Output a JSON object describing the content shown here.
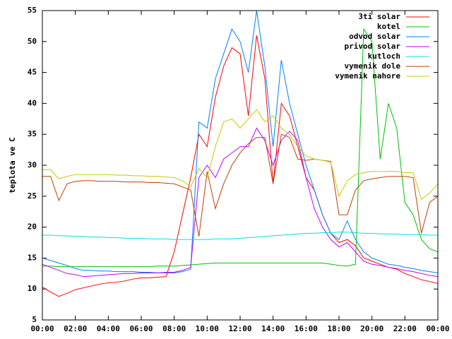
{
  "chart_data": {
    "type": "line",
    "ylabel": "teplota ve C",
    "x": [
      0,
      0.5,
      1,
      1.5,
      2,
      2.5,
      3,
      3.5,
      4,
      4.5,
      5,
      5.5,
      6,
      6.5,
      7,
      7.5,
      8,
      8.5,
      9,
      9.5,
      10,
      10.5,
      11,
      11.5,
      12,
      12.5,
      13,
      13.5,
      14,
      14.5,
      15,
      15.5,
      16,
      16.5,
      17,
      17.5,
      18,
      18.5,
      19,
      19.5,
      20,
      20.5,
      21,
      21.5,
      22,
      22.5,
      23,
      23.5,
      24
    ],
    "xlim": [
      0,
      24
    ],
    "xticks": [
      {
        "value": 0,
        "label": "00:00"
      },
      {
        "value": 2,
        "label": "02:00"
      },
      {
        "value": 4,
        "label": "04:00"
      },
      {
        "value": 6,
        "label": "06:00"
      },
      {
        "value": 8,
        "label": "08:00"
      },
      {
        "value": 10,
        "label": "10:00"
      },
      {
        "value": 12,
        "label": "12:00"
      },
      {
        "value": 14,
        "label": "14:00"
      },
      {
        "value": 16,
        "label": "16:00"
      },
      {
        "value": 18,
        "label": "18:00"
      },
      {
        "value": 20,
        "label": "20:00"
      },
      {
        "value": 22,
        "label": "22:00"
      },
      {
        "value": 24,
        "label": "00:00"
      }
    ],
    "ylim": [
      5,
      55
    ],
    "yticks": [
      5,
      10,
      15,
      20,
      25,
      30,
      35,
      40,
      45,
      50,
      55
    ],
    "legend": "top-right",
    "series": [
      {
        "name": "3ti solar",
        "color": "#ff0000",
        "values": [
          10.3,
          9.5,
          8.8,
          9.3,
          9.9,
          10.2,
          10.5,
          10.8,
          11,
          11.1,
          11.3,
          11.6,
          11.8,
          11.8,
          11.9,
          12,
          16,
          22,
          28,
          35,
          33,
          41,
          46,
          49,
          48,
          38,
          51,
          44,
          27,
          40,
          38,
          33,
          28,
          26,
          22,
          19,
          17.5,
          18,
          17,
          15,
          14.5,
          14,
          13.5,
          13.2,
          12.5,
          12,
          11.5,
          11.2,
          10.9
        ]
      },
      {
        "name": "kotel",
        "color": "#00c000",
        "values": [
          13.7,
          13.7,
          13.6,
          13.6,
          13.6,
          13.6,
          13.6,
          13.6,
          13.6,
          13.6,
          13.6,
          13.6,
          13.6,
          13.6,
          13.7,
          13.7,
          13.7,
          13.8,
          13.9,
          14.0,
          14.1,
          14.2,
          14.2,
          14.2,
          14.2,
          14.2,
          14.2,
          14.2,
          14.2,
          14.2,
          14.2,
          14.2,
          14.2,
          14.2,
          14.2,
          14.0,
          13.8,
          13.7,
          14,
          52,
          50,
          31,
          40,
          36,
          24,
          22,
          18,
          16.5,
          16
        ]
      },
      {
        "name": "odvod solar",
        "color": "#0080ff",
        "values": [
          15,
          14.6,
          14.2,
          13.8,
          13.3,
          13,
          13,
          12.9,
          12.9,
          12.8,
          12.8,
          12.8,
          12.7,
          12.7,
          12.6,
          12.6,
          12.6,
          12.8,
          13.2,
          37,
          36,
          44,
          48,
          52,
          50,
          45,
          55,
          46,
          33,
          47,
          40,
          35,
          30,
          26,
          22,
          19,
          18,
          21,
          18,
          16,
          15,
          14.5,
          14,
          13.8,
          13.5,
          13.3,
          13,
          12.8,
          12.6
        ]
      },
      {
        "name": "privod solar",
        "color": "#c000ff",
        "values": [
          14,
          13.5,
          13,
          12.5,
          12.3,
          12,
          12.1,
          12.2,
          12.3,
          12.4,
          12.5,
          12.5,
          12.6,
          12.6,
          12.6,
          12.7,
          12.7,
          13,
          13.5,
          28,
          30,
          28,
          31,
          32,
          33,
          33,
          36,
          34,
          30,
          34,
          35.5,
          34,
          28,
          23,
          20,
          18,
          16.8,
          17.5,
          16,
          14.5,
          14,
          13.8,
          13.5,
          13.3,
          13,
          12.8,
          12.5,
          12.2,
          12
        ]
      },
      {
        "name": "kutloch",
        "color": "#00e0e0",
        "values": [
          18.7,
          18.7,
          18.6,
          18.6,
          18.5,
          18.5,
          18.4,
          18.4,
          18.3,
          18.3,
          18.2,
          18.2,
          18.2,
          18.1,
          18.1,
          18.1,
          18,
          18,
          18,
          18,
          18,
          18.1,
          18.1,
          18.1,
          18.2,
          18.3,
          18.4,
          18.5,
          18.6,
          18.7,
          18.8,
          18.9,
          19,
          19,
          19.1,
          19.1,
          19.2,
          19.2,
          19.1,
          19,
          19,
          18.9,
          18.9,
          18.9,
          18.8,
          18.8,
          18.8,
          18.7,
          18.7
        ]
      },
      {
        "name": "vymenik dole",
        "color": "#c04000",
        "values": [
          28.2,
          28.2,
          24.3,
          27,
          27.4,
          27.5,
          27.5,
          27.4,
          27.4,
          27.4,
          27.3,
          27.3,
          27.3,
          27.2,
          27.2,
          27.1,
          27,
          26.5,
          26,
          18.5,
          29,
          23,
          27,
          30,
          32,
          33.5,
          34.5,
          34.5,
          27,
          35,
          34.5,
          31,
          30.8,
          31,
          30.8,
          30.6,
          22,
          22,
          26,
          27.5,
          27.8,
          28,
          28.2,
          28.2,
          28.2,
          28,
          19,
          24,
          25
        ]
      },
      {
        "name": "vymenik nahore",
        "color": "#c8c800",
        "values": [
          29.3,
          29.3,
          27.8,
          28.2,
          28.5,
          28.5,
          28.5,
          28.5,
          28.5,
          28.4,
          28.4,
          28.3,
          28.3,
          28.2,
          28.2,
          28.1,
          28,
          27.5,
          26.5,
          29.5,
          28,
          33,
          37,
          37.5,
          36,
          37.5,
          39,
          37,
          38,
          36,
          35,
          33,
          31.5,
          31,
          30.8,
          30.5,
          25,
          27.5,
          28.5,
          28.8,
          29,
          29,
          29,
          29,
          28.8,
          28.8,
          24.5,
          25.5,
          27
        ]
      }
    ]
  }
}
